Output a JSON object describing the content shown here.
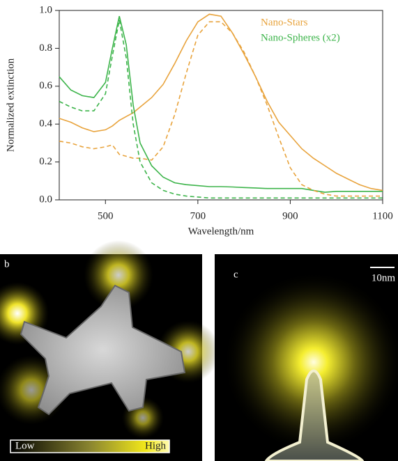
{
  "chart_data": {
    "type": "line",
    "xlabel": "Wavelength/nm",
    "ylabel": "Normalized extinction",
    "x": [
      400,
      425,
      450,
      475,
      500,
      515,
      530,
      545,
      560,
      575,
      600,
      625,
      650,
      675,
      700,
      725,
      750,
      775,
      800,
      825,
      850,
      875,
      900,
      925,
      950,
      975,
      1000,
      1025,
      1050,
      1075,
      1100
    ],
    "series": [
      {
        "name": "Nano-Stars",
        "color": "#e8a33c",
        "values": [
          0.43,
          0.41,
          0.38,
          0.36,
          0.37,
          0.39,
          0.42,
          0.44,
          0.46,
          0.49,
          0.54,
          0.61,
          0.72,
          0.84,
          0.94,
          0.98,
          0.97,
          0.88,
          0.77,
          0.65,
          0.52,
          0.41,
          0.34,
          0.27,
          0.22,
          0.18,
          0.14,
          0.11,
          0.08,
          0.06,
          0.05
        ]
      },
      {
        "name": "Nano-Spheres (x2)",
        "color": "#3cb44a",
        "values": [
          0.65,
          0.58,
          0.55,
          0.54,
          0.62,
          0.8,
          0.97,
          0.82,
          0.5,
          0.3,
          0.18,
          0.12,
          0.09,
          0.08,
          0.075,
          0.07,
          0.07,
          0.068,
          0.065,
          0.063,
          0.06,
          0.06,
          0.06,
          0.06,
          0.05,
          0.04,
          0.045,
          0.045,
          0.045,
          0.045,
          0.045
        ]
      },
      {
        "color": "#e8a33c",
        "dashed": true,
        "values": [
          0.31,
          0.3,
          0.28,
          0.27,
          0.28,
          0.29,
          0.24,
          0.23,
          0.22,
          0.22,
          0.21,
          0.28,
          0.45,
          0.67,
          0.87,
          0.94,
          0.94,
          0.88,
          0.78,
          0.65,
          0.5,
          0.33,
          0.17,
          0.08,
          0.05,
          0.03,
          0.02,
          0.02,
          0.02,
          0.02,
          0.02
        ]
      },
      {
        "color": "#3cb44a",
        "dashed": true,
        "values": [
          0.52,
          0.49,
          0.47,
          0.47,
          0.56,
          0.76,
          0.95,
          0.75,
          0.4,
          0.2,
          0.09,
          0.05,
          0.03,
          0.02,
          0.015,
          0.01,
          0.01,
          0.01,
          0.01,
          0.01,
          0.01,
          0.01,
          0.01,
          0.01,
          0.01,
          0.01,
          0.01,
          0.01,
          0.01,
          0.01,
          0.01
        ]
      }
    ],
    "xlim": [
      400,
      1100
    ],
    "xticks": [
      500,
      700,
      900,
      1100
    ],
    "ylim": [
      0,
      1
    ],
    "yticks": [
      {
        "value": 0,
        "label": "0.0"
      },
      0.2,
      0.4,
      0.6,
      0.8,
      {
        "value": 1,
        "label": "1.0"
      }
    ],
    "legend": "upper right"
  },
  "panels": [
    {
      "label": "b",
      "colorbar_low": "Low",
      "colorbar_high": "High"
    },
    {
      "label": "c",
      "scale_bar": "10nm"
    }
  ]
}
